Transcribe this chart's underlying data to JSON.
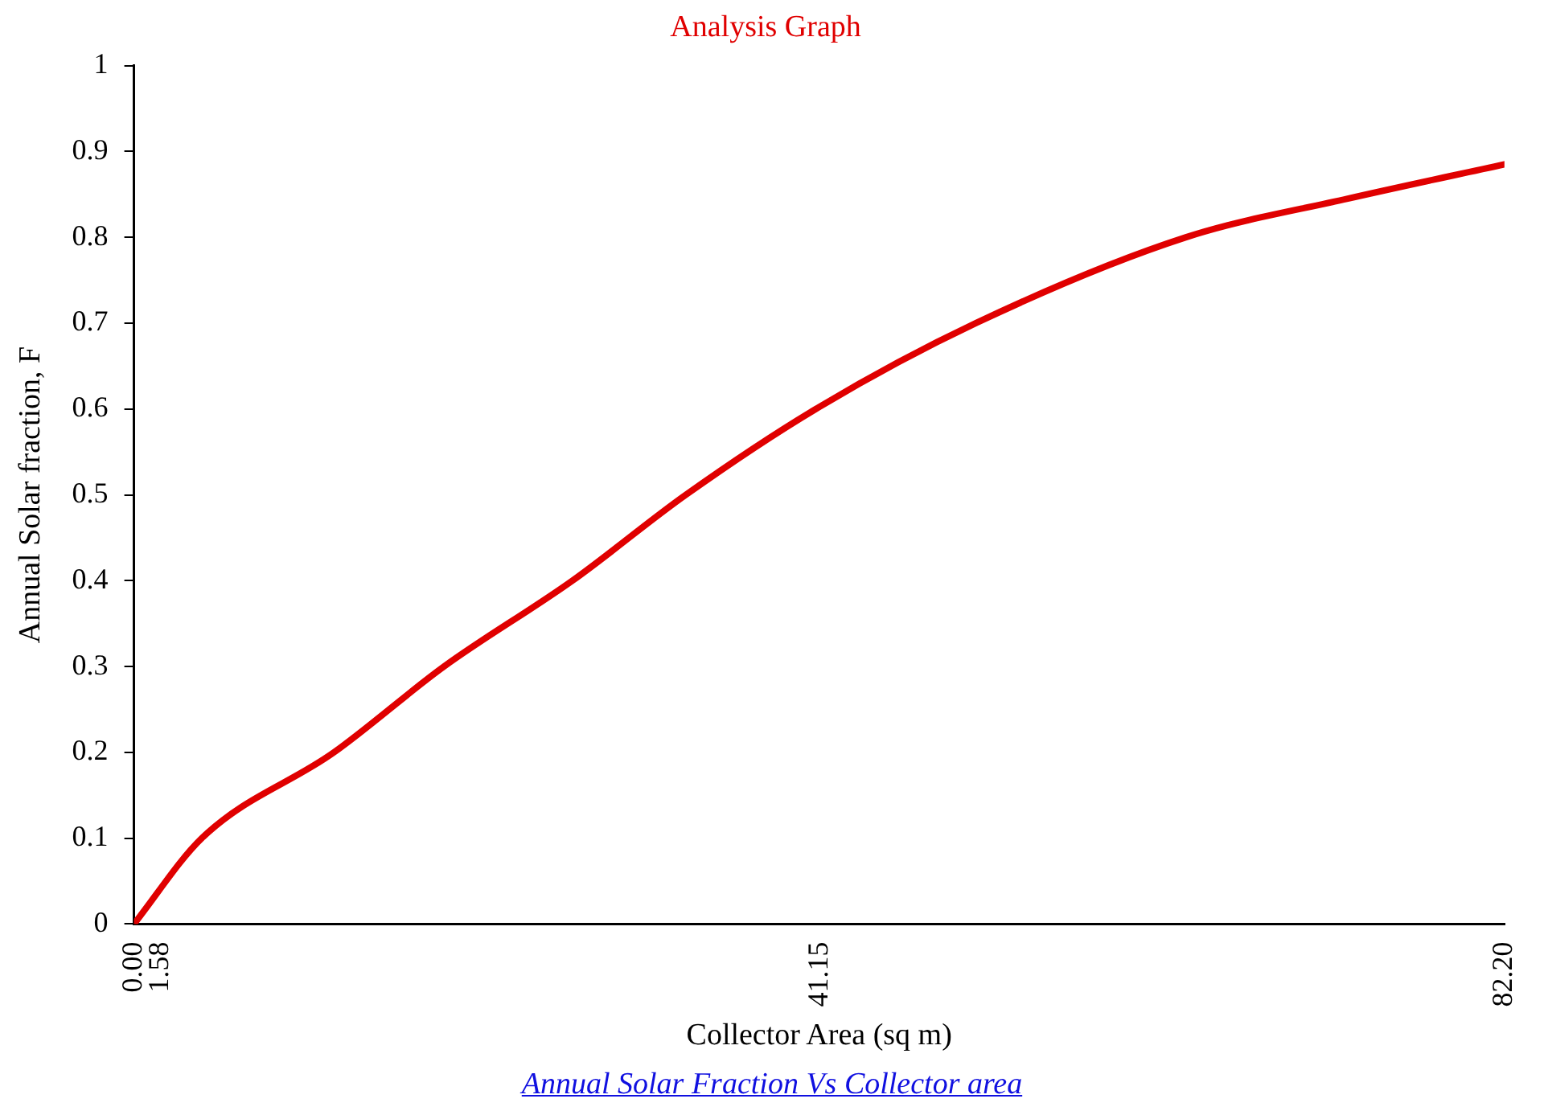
{
  "chart_data": {
    "type": "line",
    "title": "Analysis Graph",
    "xlabel": "Collector Area (sq m)",
    "ylabel": "Annual Solar fraction, F",
    "annotations": [
      "Annual Solar Fraction Vs Collector area"
    ],
    "x": [
      0,
      4.07,
      12.0,
      18.6,
      26.3,
      33.1,
      40.9,
      50.5,
      63.1,
      72.8,
      82.2
    ],
    "series": [
      {
        "color": "#e00000",
        "values": [
          0,
          0.1,
          0.2,
          0.3,
          0.4,
          0.5,
          0.6,
          0.7,
          0.8,
          0.845,
          0.885
        ]
      }
    ],
    "xlim": [
      0,
      82.2
    ],
    "xticks": [
      {
        "value": 0,
        "label": "0.00"
      },
      {
        "value": 1.58,
        "label": "1.58"
      },
      {
        "value": 41.15,
        "label": "41.15"
      },
      {
        "value": 82.2,
        "label": "82.20"
      }
    ],
    "ylim": [
      0,
      1
    ],
    "yticks": [
      0,
      0.1,
      0.2,
      0.3,
      0.4,
      0.5,
      0.6,
      0.7,
      0.8,
      0.9,
      1
    ],
    "grid": false,
    "legend": false,
    "marker": "none",
    "line_style": "solid"
  }
}
